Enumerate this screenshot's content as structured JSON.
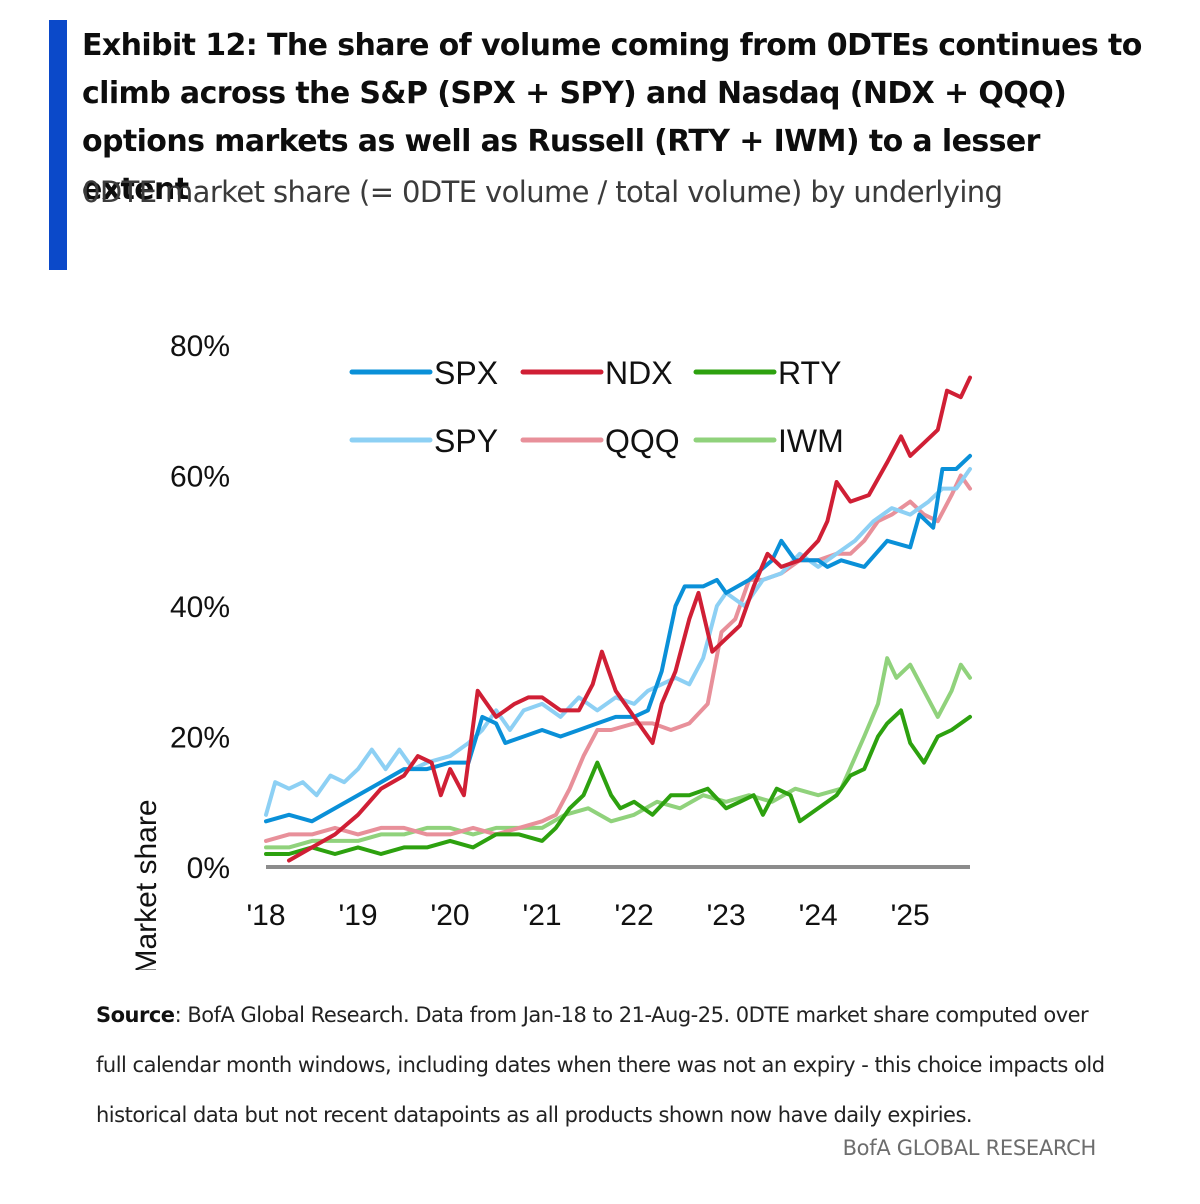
{
  "header": {
    "title": "Exhibit 12: The share of volume coming from 0DTEs continues to climb across the S&P (SPX + SPY) and Nasdaq (NDX + QQQ) options markets as well as Russell (RTY + IWM) to a lesser extent",
    "subtitle": "0DTE market share (= 0DTE volume / total volume) by underlying"
  },
  "footer": {
    "source_label": "Source",
    "source_text": ": BofA Global Research. Data from Jan-18 to 21-Aug-25. 0DTE market share computed over full calendar month windows, including dates when there was not an expiry - this choice impacts old historical data but not recent datapoints as all products shown now have daily expiries.",
    "brand": "BofA GLOBAL RESEARCH"
  },
  "chart_data": {
    "type": "line",
    "title": "",
    "xlabel": "",
    "ylabel": "Market share",
    "xlim": [
      2018,
      2025.65
    ],
    "ylim": [
      0,
      80
    ],
    "y_ticks": [
      0,
      20,
      40,
      60,
      80
    ],
    "y_tick_labels": [
      "0%",
      "20%",
      "40%",
      "60%",
      "80%"
    ],
    "x_ticks": [
      2018,
      2019,
      2020,
      2021,
      2022,
      2023,
      2024,
      2025
    ],
    "x_tick_labels": [
      "'18",
      "'19",
      "'20",
      "'21",
      "'22",
      "'23",
      "'24",
      "'25"
    ],
    "grid": false,
    "legend_position": "top-center",
    "series": [
      {
        "name": "SPX",
        "color": "#0a90d8",
        "width": 4,
        "points": [
          [
            2018.0,
            7
          ],
          [
            2018.25,
            8
          ],
          [
            2018.5,
            7
          ],
          [
            2018.75,
            9
          ],
          [
            2019.0,
            11
          ],
          [
            2019.25,
            13
          ],
          [
            2019.5,
            15
          ],
          [
            2019.75,
            15
          ],
          [
            2020.0,
            16
          ],
          [
            2020.2,
            16
          ],
          [
            2020.35,
            23
          ],
          [
            2020.5,
            22
          ],
          [
            2020.6,
            19
          ],
          [
            2020.8,
            20
          ],
          [
            2021.0,
            21
          ],
          [
            2021.2,
            20
          ],
          [
            2021.4,
            21
          ],
          [
            2021.6,
            22
          ],
          [
            2021.8,
            23
          ],
          [
            2022.0,
            23
          ],
          [
            2022.15,
            24
          ],
          [
            2022.3,
            30
          ],
          [
            2022.45,
            40
          ],
          [
            2022.55,
            43
          ],
          [
            2022.75,
            43
          ],
          [
            2022.9,
            44
          ],
          [
            2023.0,
            42
          ],
          [
            2023.25,
            44
          ],
          [
            2023.5,
            47
          ],
          [
            2023.6,
            50
          ],
          [
            2023.75,
            47
          ],
          [
            2024.0,
            47
          ],
          [
            2024.1,
            46
          ],
          [
            2024.25,
            47
          ],
          [
            2024.5,
            46
          ],
          [
            2024.75,
            50
          ],
          [
            2025.0,
            49
          ],
          [
            2025.1,
            54
          ],
          [
            2025.25,
            52
          ],
          [
            2025.35,
            61
          ],
          [
            2025.5,
            61
          ],
          [
            2025.65,
            63
          ]
        ]
      },
      {
        "name": "NDX",
        "color": "#d01f35",
        "width": 4,
        "points": [
          [
            2018.25,
            1
          ],
          [
            2018.5,
            3
          ],
          [
            2018.75,
            5
          ],
          [
            2019.0,
            8
          ],
          [
            2019.25,
            12
          ],
          [
            2019.5,
            14
          ],
          [
            2019.65,
            17
          ],
          [
            2019.8,
            16
          ],
          [
            2019.9,
            11
          ],
          [
            2020.0,
            15
          ],
          [
            2020.15,
            11
          ],
          [
            2020.3,
            27
          ],
          [
            2020.5,
            23
          ],
          [
            2020.7,
            25
          ],
          [
            2020.85,
            26
          ],
          [
            2021.0,
            26
          ],
          [
            2021.2,
            24
          ],
          [
            2021.4,
            24
          ],
          [
            2021.55,
            28
          ],
          [
            2021.65,
            33
          ],
          [
            2021.8,
            27
          ],
          [
            2022.0,
            23
          ],
          [
            2022.1,
            21
          ],
          [
            2022.2,
            19
          ],
          [
            2022.3,
            25
          ],
          [
            2022.45,
            30
          ],
          [
            2022.6,
            38
          ],
          [
            2022.7,
            42
          ],
          [
            2022.85,
            33
          ],
          [
            2023.0,
            35
          ],
          [
            2023.15,
            37
          ],
          [
            2023.3,
            43
          ],
          [
            2023.45,
            48
          ],
          [
            2023.6,
            46
          ],
          [
            2023.8,
            47
          ],
          [
            2024.0,
            50
          ],
          [
            2024.1,
            53
          ],
          [
            2024.2,
            59
          ],
          [
            2024.35,
            56
          ],
          [
            2024.55,
            57
          ],
          [
            2024.75,
            62
          ],
          [
            2024.9,
            66
          ],
          [
            2025.0,
            63
          ],
          [
            2025.15,
            65
          ],
          [
            2025.3,
            67
          ],
          [
            2025.4,
            73
          ],
          [
            2025.55,
            72
          ],
          [
            2025.65,
            75
          ]
        ]
      },
      {
        "name": "RTY",
        "color": "#2da10f",
        "width": 4,
        "points": [
          [
            2018.0,
            2
          ],
          [
            2018.25,
            2
          ],
          [
            2018.5,
            3
          ],
          [
            2018.75,
            2
          ],
          [
            2019.0,
            3
          ],
          [
            2019.25,
            2
          ],
          [
            2019.5,
            3
          ],
          [
            2019.75,
            3
          ],
          [
            2020.0,
            4
          ],
          [
            2020.25,
            3
          ],
          [
            2020.5,
            5
          ],
          [
            2020.75,
            5
          ],
          [
            2021.0,
            4
          ],
          [
            2021.15,
            6
          ],
          [
            2021.3,
            9
          ],
          [
            2021.45,
            11
          ],
          [
            2021.6,
            16
          ],
          [
            2021.75,
            11
          ],
          [
            2021.85,
            9
          ],
          [
            2022.0,
            10
          ],
          [
            2022.2,
            8
          ],
          [
            2022.4,
            11
          ],
          [
            2022.6,
            11
          ],
          [
            2022.8,
            12
          ],
          [
            2023.0,
            9
          ],
          [
            2023.15,
            10
          ],
          [
            2023.3,
            11
          ],
          [
            2023.4,
            8
          ],
          [
            2023.55,
            12
          ],
          [
            2023.7,
            11
          ],
          [
            2023.8,
            7
          ],
          [
            2024.0,
            9
          ],
          [
            2024.2,
            11
          ],
          [
            2024.35,
            14
          ],
          [
            2024.5,
            15
          ],
          [
            2024.65,
            20
          ],
          [
            2024.75,
            22
          ],
          [
            2024.9,
            24
          ],
          [
            2025.0,
            19
          ],
          [
            2025.15,
            16
          ],
          [
            2025.3,
            20
          ],
          [
            2025.45,
            21
          ],
          [
            2025.65,
            23
          ]
        ]
      },
      {
        "name": "SPY",
        "color": "#8dd0f4",
        "width": 4,
        "points": [
          [
            2018.0,
            8
          ],
          [
            2018.1,
            13
          ],
          [
            2018.25,
            12
          ],
          [
            2018.4,
            13
          ],
          [
            2018.55,
            11
          ],
          [
            2018.7,
            14
          ],
          [
            2018.85,
            13
          ],
          [
            2019.0,
            15
          ],
          [
            2019.15,
            18
          ],
          [
            2019.3,
            15
          ],
          [
            2019.45,
            18
          ],
          [
            2019.6,
            15
          ],
          [
            2019.75,
            16
          ],
          [
            2020.0,
            17
          ],
          [
            2020.2,
            19
          ],
          [
            2020.35,
            21
          ],
          [
            2020.5,
            24
          ],
          [
            2020.65,
            21
          ],
          [
            2020.8,
            24
          ],
          [
            2021.0,
            25
          ],
          [
            2021.2,
            23
          ],
          [
            2021.4,
            26
          ],
          [
            2021.6,
            24
          ],
          [
            2021.8,
            26
          ],
          [
            2022.0,
            25
          ],
          [
            2022.15,
            27
          ],
          [
            2022.3,
            28
          ],
          [
            2022.45,
            29
          ],
          [
            2022.6,
            28
          ],
          [
            2022.75,
            32
          ],
          [
            2022.9,
            40
          ],
          [
            2023.0,
            42
          ],
          [
            2023.2,
            40
          ],
          [
            2023.4,
            44
          ],
          [
            2023.6,
            45
          ],
          [
            2023.8,
            48
          ],
          [
            2024.0,
            46
          ],
          [
            2024.2,
            48
          ],
          [
            2024.4,
            50
          ],
          [
            2024.6,
            53
          ],
          [
            2024.8,
            55
          ],
          [
            2025.0,
            54
          ],
          [
            2025.2,
            56
          ],
          [
            2025.35,
            58
          ],
          [
            2025.5,
            58
          ],
          [
            2025.65,
            61
          ]
        ]
      },
      {
        "name": "QQQ",
        "color": "#e8909a",
        "width": 4,
        "points": [
          [
            2018.0,
            4
          ],
          [
            2018.25,
            5
          ],
          [
            2018.5,
            5
          ],
          [
            2018.75,
            6
          ],
          [
            2019.0,
            5
          ],
          [
            2019.25,
            6
          ],
          [
            2019.5,
            6
          ],
          [
            2019.75,
            5
          ],
          [
            2020.0,
            5
          ],
          [
            2020.25,
            6
          ],
          [
            2020.5,
            5
          ],
          [
            2020.75,
            6
          ],
          [
            2021.0,
            7
          ],
          [
            2021.15,
            8
          ],
          [
            2021.3,
            12
          ],
          [
            2021.45,
            17
          ],
          [
            2021.6,
            21
          ],
          [
            2021.75,
            21
          ],
          [
            2022.0,
            22
          ],
          [
            2022.2,
            22
          ],
          [
            2022.4,
            21
          ],
          [
            2022.6,
            22
          ],
          [
            2022.8,
            25
          ],
          [
            2022.95,
            36
          ],
          [
            2023.1,
            38
          ],
          [
            2023.25,
            44
          ],
          [
            2023.4,
            44
          ],
          [
            2023.6,
            45
          ],
          [
            2023.8,
            47
          ],
          [
            2024.0,
            47
          ],
          [
            2024.2,
            48
          ],
          [
            2024.35,
            48
          ],
          [
            2024.5,
            50
          ],
          [
            2024.65,
            53
          ],
          [
            2024.8,
            54
          ],
          [
            2025.0,
            56
          ],
          [
            2025.15,
            54
          ],
          [
            2025.3,
            53
          ],
          [
            2025.45,
            57
          ],
          [
            2025.55,
            60
          ],
          [
            2025.65,
            58
          ]
        ]
      },
      {
        "name": "IWM",
        "color": "#90d27c",
        "width": 4,
        "points": [
          [
            2018.0,
            3
          ],
          [
            2018.25,
            3
          ],
          [
            2018.5,
            4
          ],
          [
            2018.75,
            4
          ],
          [
            2019.0,
            4
          ],
          [
            2019.25,
            5
          ],
          [
            2019.5,
            5
          ],
          [
            2019.75,
            6
          ],
          [
            2020.0,
            6
          ],
          [
            2020.25,
            5
          ],
          [
            2020.5,
            6
          ],
          [
            2020.75,
            6
          ],
          [
            2021.0,
            6
          ],
          [
            2021.25,
            8
          ],
          [
            2021.5,
            9
          ],
          [
            2021.75,
            7
          ],
          [
            2022.0,
            8
          ],
          [
            2022.25,
            10
          ],
          [
            2022.5,
            9
          ],
          [
            2022.75,
            11
          ],
          [
            2023.0,
            10
          ],
          [
            2023.25,
            11
          ],
          [
            2023.5,
            10
          ],
          [
            2023.75,
            12
          ],
          [
            2024.0,
            11
          ],
          [
            2024.25,
            12
          ],
          [
            2024.5,
            20
          ],
          [
            2024.65,
            25
          ],
          [
            2024.75,
            32
          ],
          [
            2024.85,
            29
          ],
          [
            2025.0,
            31
          ],
          [
            2025.15,
            27
          ],
          [
            2025.3,
            23
          ],
          [
            2025.45,
            27
          ],
          [
            2025.55,
            31
          ],
          [
            2025.65,
            29
          ]
        ]
      }
    ],
    "legend_rows": [
      [
        "SPX",
        "NDX",
        "RTY"
      ],
      [
        "SPY",
        "QQQ",
        "IWM"
      ]
    ]
  }
}
